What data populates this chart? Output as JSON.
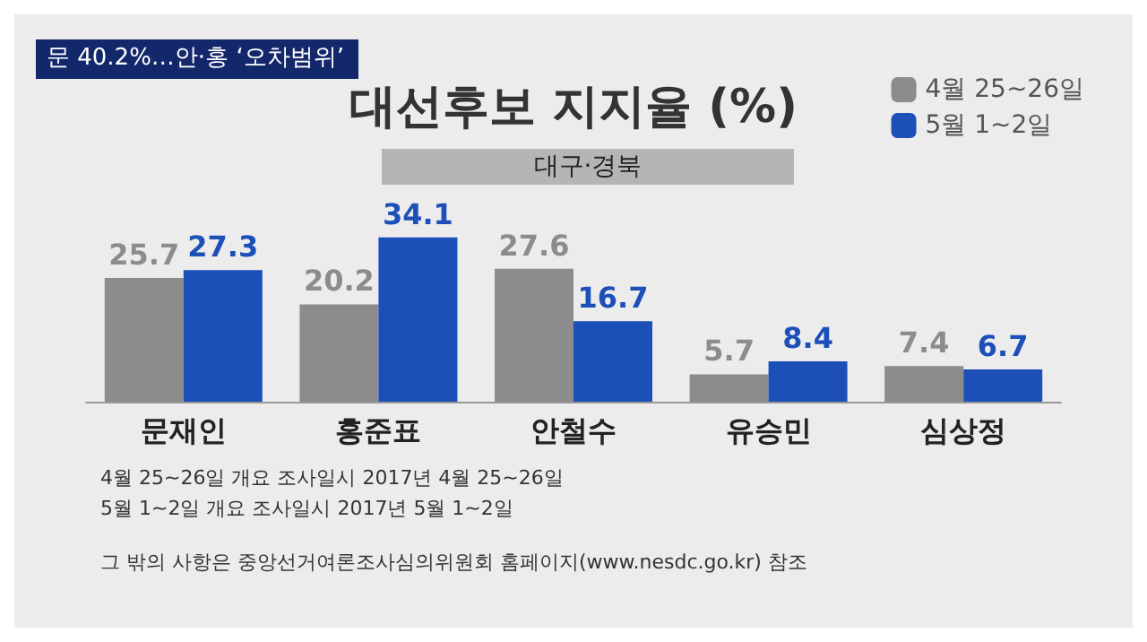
{
  "chart_data": {
    "type": "bar",
    "title": "대선후보 지지율 (%)",
    "subtitle": "대구·경북",
    "categories": [
      "문재인",
      "홍준표",
      "안철수",
      "유승민",
      "심상정"
    ],
    "series": [
      {
        "name": "4월 25~26일",
        "color": "#8c8c8c",
        "values": [
          25.7,
          20.2,
          27.6,
          5.7,
          7.4
        ]
      },
      {
        "name": "5월 1~2일",
        "color": "#1d4fb8",
        "values": [
          27.3,
          34.1,
          16.7,
          8.4,
          6.7
        ]
      }
    ],
    "data_labels": true,
    "legend": "top right",
    "annotations": [
      "문 40.2%…안·홍 ‘오차범위’",
      "4월 25~26일 개요 조사일시 2017년 4월 25~26일",
      "5월 1~2일 개요 조사일시 2017년 5월 1~2일",
      "그 밖의 사항은 중앙선거여론조사심의위원회 홈페이지(www.nesdc.go.kr) 참조"
    ]
  }
}
